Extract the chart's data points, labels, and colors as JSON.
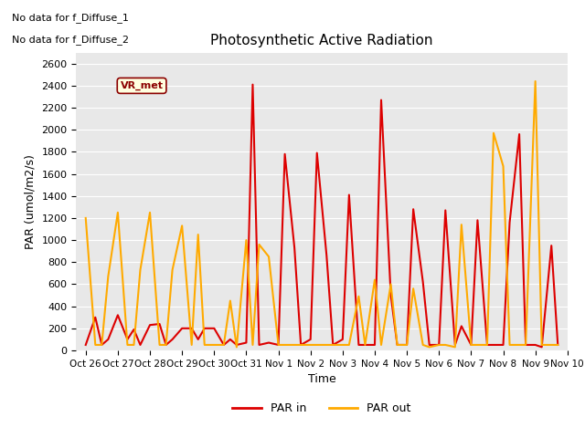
{
  "title": "Photosynthetic Active Radiation",
  "xlabel": "Time",
  "ylabel": "PAR (umol/m2/s)",
  "bg_color": "#e8e8e8",
  "text_top_left": [
    "No data for f_Diffuse_1",
    "No data for f_Diffuse_2"
  ],
  "vr_met_label": "VR_met",
  "legend_entries": [
    "PAR in",
    "PAR out"
  ],
  "legend_colors": [
    "#dd0000",
    "#ffaa00"
  ],
  "par_in_color": "#dd0000",
  "par_out_color": "#ffaa00",
  "x_tick_labels": [
    "Oct 26",
    "Oct 27",
    "Oct 28",
    "Oct 29",
    "Oct 30",
    "Oct 31",
    "Nov 1",
    "Nov 2",
    "Nov 3",
    "Nov 4",
    "Nov 5",
    "Nov 6",
    "Nov 7",
    "Nov 8",
    "Nov 9",
    "Nov 10"
  ],
  "ylim": [
    0,
    2700
  ],
  "yticks": [
    0,
    200,
    400,
    600,
    800,
    1000,
    1200,
    1400,
    1600,
    1800,
    2000,
    2200,
    2400,
    2600
  ],
  "par_in_x": [
    0.0,
    0.3,
    0.5,
    0.7,
    1.0,
    1.3,
    1.5,
    1.7,
    2.0,
    2.3,
    2.5,
    2.7,
    3.0,
    3.3,
    3.5,
    3.7,
    4.0,
    4.3,
    4.5,
    4.7,
    5.0,
    5.2,
    5.4,
    5.7,
    6.0,
    6.2,
    6.5,
    6.7,
    7.0,
    7.2,
    7.5,
    7.7,
    8.0,
    8.2,
    8.5,
    8.7,
    9.0,
    9.2,
    9.5,
    9.7,
    10.0,
    10.2,
    10.5,
    10.7,
    11.0,
    11.2,
    11.5,
    11.7,
    12.0,
    12.2,
    12.5,
    12.7,
    13.0,
    13.2,
    13.5,
    13.7,
    14.0,
    14.2,
    14.5,
    14.7
  ],
  "par_in_y": [
    50,
    300,
    50,
    100,
    320,
    100,
    190,
    50,
    230,
    240,
    50,
    100,
    200,
    200,
    100,
    200,
    200,
    50,
    100,
    50,
    70,
    2410,
    50,
    70,
    50,
    1780,
    930,
    50,
    100,
    1790,
    860,
    50,
    100,
    1410,
    50,
    50,
    50,
    2270,
    500,
    50,
    50,
    1280,
    620,
    50,
    50,
    1270,
    50,
    220,
    50,
    1180,
    50,
    50,
    50,
    1160,
    1960,
    50,
    50,
    30,
    950,
    50
  ],
  "par_out_x": [
    0.0,
    0.3,
    0.5,
    0.7,
    1.0,
    1.3,
    1.5,
    1.7,
    2.0,
    2.3,
    2.5,
    2.7,
    3.0,
    3.3,
    3.5,
    3.7,
    4.0,
    4.3,
    4.5,
    4.7,
    5.0,
    5.2,
    5.4,
    5.7,
    6.0,
    6.2,
    6.5,
    6.7,
    7.0,
    7.2,
    7.5,
    7.7,
    8.0,
    8.2,
    8.5,
    8.7,
    9.0,
    9.2,
    9.5,
    9.7,
    10.0,
    10.2,
    10.5,
    10.7,
    11.0,
    11.2,
    11.5,
    11.7,
    12.0,
    12.2,
    12.5,
    12.7,
    13.0,
    13.2,
    13.5,
    13.7,
    14.0,
    14.2,
    14.5,
    14.7
  ],
  "par_out_y": [
    1200,
    50,
    50,
    670,
    1250,
    50,
    50,
    730,
    1250,
    50,
    50,
    730,
    1130,
    50,
    1050,
    50,
    50,
    50,
    450,
    30,
    1000,
    50,
    960,
    850,
    50,
    50,
    50,
    50,
    50,
    50,
    50,
    50,
    50,
    50,
    490,
    50,
    640,
    50,
    600,
    50,
    50,
    560,
    50,
    30,
    50,
    50,
    30,
    1140,
    50,
    50,
    50,
    1970,
    1670,
    50,
    50,
    50,
    2440,
    50,
    50,
    50
  ]
}
